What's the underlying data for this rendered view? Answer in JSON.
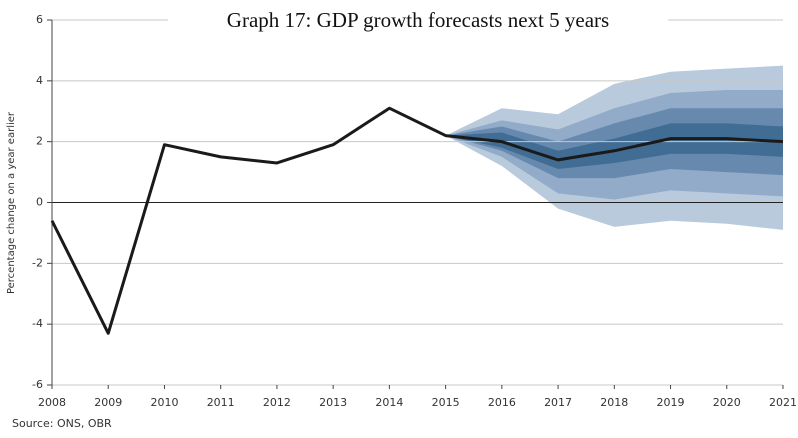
{
  "chart_data": {
    "type": "line",
    "title": "Graph 17: GDP growth forecasts next 5 years",
    "y_label": "Percentage change on a year earlier",
    "source": "Source: ONS, OBR",
    "x": [
      2008,
      2009,
      2010,
      2011,
      2012,
      2013,
      2014,
      2015,
      2016,
      2017,
      2018,
      2019,
      2020,
      2021
    ],
    "xlim": [
      2008,
      2021
    ],
    "xticks": [
      2008,
      2009,
      2010,
      2011,
      2012,
      2013,
      2014,
      2015,
      2016,
      2017,
      2018,
      2019,
      2020,
      2021
    ],
    "ylim": [
      -6,
      6
    ],
    "yticks": [
      -6,
      -4,
      -2,
      0,
      2,
      4,
      6
    ],
    "grid": true,
    "series": [
      {
        "color": "#1a1a1a",
        "values": [
          -0.6,
          -4.3,
          1.9,
          1.5,
          1.3,
          1.9,
          3.1,
          2.2,
          2.0,
          1.4,
          1.7,
          2.1,
          2.1,
          2.0
        ]
      }
    ],
    "bands": [
      {
        "color": "#b9cadd",
        "lower": [
          null,
          null,
          null,
          null,
          null,
          null,
          null,
          2.2,
          1.2,
          -0.2,
          -0.8,
          -0.6,
          -0.7,
          -0.9
        ],
        "upper": [
          null,
          null,
          null,
          null,
          null,
          null,
          null,
          2.2,
          3.1,
          2.9,
          3.9,
          4.3,
          4.4,
          4.5
        ]
      },
      {
        "color": "#91abc8",
        "lower": [
          null,
          null,
          null,
          null,
          null,
          null,
          null,
          2.2,
          1.5,
          0.3,
          0.1,
          0.4,
          0.3,
          0.2
        ],
        "upper": [
          null,
          null,
          null,
          null,
          null,
          null,
          null,
          2.2,
          2.7,
          2.4,
          3.1,
          3.6,
          3.7,
          3.7
        ]
      },
      {
        "color": "#6789ae",
        "lower": [
          null,
          null,
          null,
          null,
          null,
          null,
          null,
          2.2,
          1.7,
          0.8,
          0.8,
          1.1,
          1.0,
          0.9
        ],
        "upper": [
          null,
          null,
          null,
          null,
          null,
          null,
          null,
          2.2,
          2.5,
          2.0,
          2.6,
          3.1,
          3.1,
          3.1
        ]
      },
      {
        "color": "#416c93",
        "lower": [
          null,
          null,
          null,
          null,
          null,
          null,
          null,
          2.2,
          1.8,
          1.1,
          1.3,
          1.6,
          1.6,
          1.5
        ],
        "upper": [
          null,
          null,
          null,
          null,
          null,
          null,
          null,
          2.2,
          2.3,
          1.7,
          2.1,
          2.6,
          2.6,
          2.5
        ]
      }
    ]
  }
}
